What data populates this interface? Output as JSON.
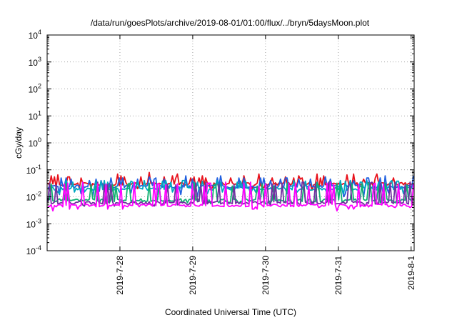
{
  "chart_data": {
    "type": "line",
    "title": "/data/run/goesPlots/archive/2019-08-01/01:00/flux/../bryn/5daysMoon.plot",
    "xlabel": "Coordinated Universal Time (UTC)",
    "ylabel": "cGy/day",
    "yscale": "log",
    "ylim": [
      0.0001,
      10000
    ],
    "y_ticks": [
      {
        "exp": "-4",
        "value": 0.0001
      },
      {
        "exp": "-3",
        "value": 0.001
      },
      {
        "exp": "-2",
        "value": 0.01
      },
      {
        "exp": "-1",
        "value": 0.1
      },
      {
        "exp": "0",
        "value": 1
      },
      {
        "exp": "1",
        "value": 10
      },
      {
        "exp": "2",
        "value": 100
      },
      {
        "exp": "3",
        "value": 1000
      },
      {
        "exp": "4",
        "value": 10000
      }
    ],
    "y_tick_base": "10",
    "xlim": [
      "2019-07-27 00:00",
      "2019-08-01 01:00"
    ],
    "x_ticks": [
      "2019-7-28",
      "2019-7-29",
      "2019-7-30",
      "2019-7-31",
      "2019-8-1"
    ],
    "grid": true,
    "legend": "none",
    "series": [
      {
        "color": "#e8101a",
        "baseline": 0.03,
        "spikes": [
          0.045,
          0.055,
          0.05,
          0.06,
          0.07,
          0.055,
          0.05,
          0.065,
          0.08,
          0.055
        ],
        "dips": [
          0.02,
          0.022,
          0.018
        ]
      },
      {
        "color": "#2060e0",
        "baseline": 0.024,
        "spikes": [
          0.04,
          0.05,
          0.045,
          0.05,
          0.06,
          0.045,
          0.05,
          0.055
        ],
        "dips": [
          0.012,
          0.014,
          0.01,
          0.016,
          0.013
        ]
      },
      {
        "color": "#00a8c0",
        "baseline": 0.02,
        "spikes": [
          0.035,
          0.04,
          0.038
        ],
        "dips": [
          0.013,
          0.015
        ]
      },
      {
        "color": "#10b070",
        "baseline": 0.0075,
        "spikes": [
          0.025,
          0.03,
          0.028,
          0.032
        ],
        "dips": [
          0.006,
          0.0055
        ]
      },
      {
        "color": "#7030a0",
        "baseline": 0.006,
        "spikes": [
          0.028,
          0.03,
          0.032,
          0.035
        ],
        "dips": [
          0.005,
          0.0045
        ]
      },
      {
        "color": "#ff00ff",
        "baseline": 0.0048,
        "spikes": [
          0.025,
          0.03,
          0.028,
          0.035,
          0.032,
          0.03
        ],
        "dips": [
          0.0035,
          0.004,
          0.003
        ]
      }
    ]
  }
}
